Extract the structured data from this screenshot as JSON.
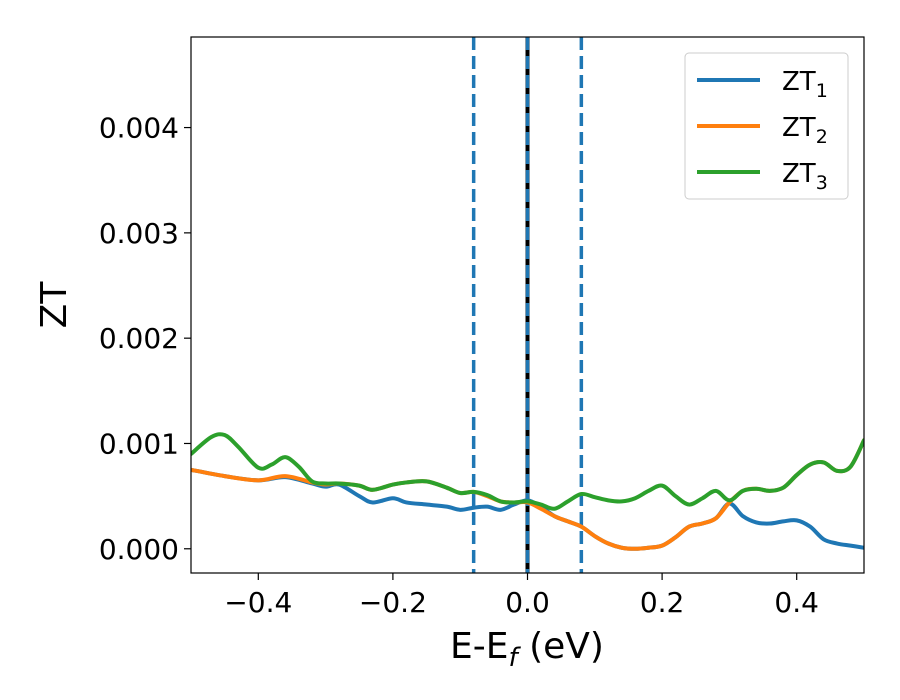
{
  "chart_data": {
    "type": "line",
    "xlabel": "E-E",
    "xlabel_sub": "f",
    "xlabel_unit": " (eV)",
    "ylabel": "ZT",
    "xlim": [
      -0.5,
      0.5
    ],
    "ylim": [
      -0.00023,
      0.00486
    ],
    "x_ticks": [
      -0.4,
      -0.2,
      0.0,
      0.2,
      0.4
    ],
    "x_tick_labels": [
      "−0.4",
      "−0.2",
      "0.0",
      "0.2",
      "0.4"
    ],
    "y_ticks": [
      0.0,
      0.001,
      0.002,
      0.003,
      0.004
    ],
    "y_tick_labels": [
      "0.000",
      "0.001",
      "0.002",
      "0.003",
      "0.004"
    ],
    "legend_position": "top-right",
    "series": [
      {
        "name": "ZT",
        "name_sub": "1",
        "color": "#1f77b4",
        "x": [
          -0.5,
          -0.45,
          -0.4,
          -0.36,
          -0.32,
          -0.3,
          -0.28,
          -0.25,
          -0.23,
          -0.2,
          -0.18,
          -0.15,
          -0.12,
          -0.1,
          -0.08,
          -0.06,
          -0.04,
          -0.02,
          0.0,
          0.02,
          0.04,
          0.06,
          0.08,
          0.1,
          0.12,
          0.14,
          0.16,
          0.18,
          0.2,
          0.22,
          0.24,
          0.26,
          0.28,
          0.3,
          0.32,
          0.34,
          0.36,
          0.38,
          0.4,
          0.42,
          0.44,
          0.46,
          0.48,
          0.5
        ],
        "y": [
          0.00075,
          0.00069,
          0.00065,
          0.00068,
          0.00062,
          0.00059,
          0.00061,
          0.0005,
          0.00044,
          0.00048,
          0.00044,
          0.00042,
          0.0004,
          0.00037,
          0.00039,
          0.0004,
          0.00037,
          0.00042,
          0.00046,
          0.0004,
          0.00031,
          0.00026,
          0.00021,
          0.00012,
          5e-05,
          1e-05,
          0.0,
          1e-05,
          3e-05,
          0.00011,
          0.00021,
          0.00024,
          0.00029,
          0.00043,
          0.00031,
          0.00025,
          0.00024,
          0.00026,
          0.00027,
          0.00021,
          9e-05,
          5e-05,
          3e-05,
          1e-05
        ]
      },
      {
        "name": "ZT",
        "name_sub": "2",
        "color": "#ff7f0e",
        "x": [
          -0.5,
          -0.45,
          -0.4,
          -0.36,
          -0.32,
          -0.3,
          -0.28,
          -0.25,
          -0.23,
          -0.2,
          -0.18,
          -0.15,
          -0.12,
          -0.1,
          -0.08,
          -0.06,
          -0.04,
          -0.02,
          0.0,
          0.02,
          0.04,
          0.06,
          0.08,
          0.1,
          0.12,
          0.14,
          0.16,
          0.18,
          0.2,
          0.22,
          0.24,
          0.26,
          0.28,
          0.3,
          0.32,
          0.34,
          0.36,
          0.38,
          0.4,
          0.42,
          0.44,
          0.46,
          0.48,
          0.5
        ],
        "y": [
          0.00075,
          0.00069,
          0.00065,
          0.00069,
          0.00063,
          0.00061,
          0.00062,
          0.0006,
          0.00056,
          0.00061,
          0.00063,
          0.00064,
          0.00058,
          0.00053,
          0.00054,
          0.0005,
          0.00045,
          0.00044,
          0.00044,
          0.00038,
          0.00031,
          0.00026,
          0.00021,
          0.00012,
          5e-05,
          1e-05,
          0.0,
          1e-05,
          3e-05,
          0.00011,
          0.00021,
          0.00024,
          0.00029,
          0.00044,
          0.00055,
          0.00057,
          0.00055,
          0.00058,
          0.0007,
          0.0008,
          0.00082,
          0.00074,
          0.00078,
          0.00103
        ]
      },
      {
        "name": "ZT",
        "name_sub": "3",
        "color": "#2ca02c",
        "x": [
          -0.5,
          -0.47,
          -0.45,
          -0.43,
          -0.4,
          -0.38,
          -0.36,
          -0.34,
          -0.32,
          -0.3,
          -0.28,
          -0.25,
          -0.23,
          -0.2,
          -0.18,
          -0.15,
          -0.12,
          -0.1,
          -0.08,
          -0.06,
          -0.04,
          -0.02,
          0.0,
          0.02,
          0.04,
          0.06,
          0.08,
          0.1,
          0.12,
          0.14,
          0.16,
          0.18,
          0.2,
          0.22,
          0.24,
          0.26,
          0.28,
          0.3,
          0.32,
          0.34,
          0.36,
          0.38,
          0.4,
          0.42,
          0.44,
          0.46,
          0.48,
          0.5
        ],
        "y": [
          0.0009,
          0.00106,
          0.00108,
          0.00097,
          0.00077,
          0.0008,
          0.00087,
          0.00078,
          0.00064,
          0.00062,
          0.00062,
          0.0006,
          0.00056,
          0.00061,
          0.00063,
          0.00064,
          0.00058,
          0.00053,
          0.00054,
          0.00051,
          0.00045,
          0.00044,
          0.00045,
          0.00042,
          0.00038,
          0.00045,
          0.00052,
          0.00049,
          0.00046,
          0.00045,
          0.00048,
          0.00055,
          0.0006,
          0.0005,
          0.00042,
          0.00048,
          0.00055,
          0.00046,
          0.00055,
          0.00057,
          0.00055,
          0.00058,
          0.0007,
          0.0008,
          0.00082,
          0.00074,
          0.00078,
          0.00103
        ]
      }
    ],
    "vertical_lines": [
      {
        "x": 0.0,
        "color": "#000000",
        "style": "solid"
      },
      {
        "x": -0.08,
        "color": "#1f77b4",
        "style": "dashed"
      },
      {
        "x": 0.0,
        "color": "#1f77b4",
        "style": "dashed"
      },
      {
        "x": 0.08,
        "color": "#1f77b4",
        "style": "dashed"
      }
    ]
  }
}
